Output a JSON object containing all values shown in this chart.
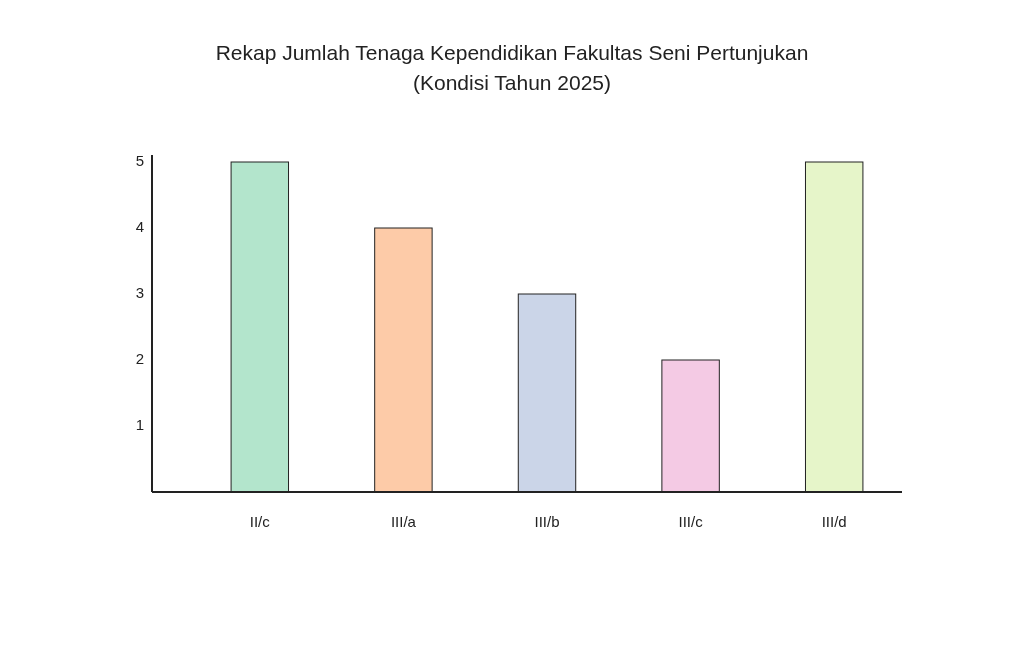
{
  "chart_data": {
    "type": "bar",
    "title": "Rekap Jumlah Tenaga Kependidikan Fakultas Seni Pertunjukan",
    "subtitle": "(Kondisi Tahun 2025)",
    "categories": [
      "II/c",
      "III/a",
      "III/b",
      "III/c",
      "III/d"
    ],
    "values": [
      5,
      4,
      3,
      2,
      5
    ],
    "colors": [
      "#b3e5cc",
      "#fdcba8",
      "#cbd5e8",
      "#f4cae4",
      "#e6f5c9"
    ],
    "ylim": [
      0,
      5
    ],
    "yticks": [
      1,
      2,
      3,
      4,
      5
    ]
  }
}
